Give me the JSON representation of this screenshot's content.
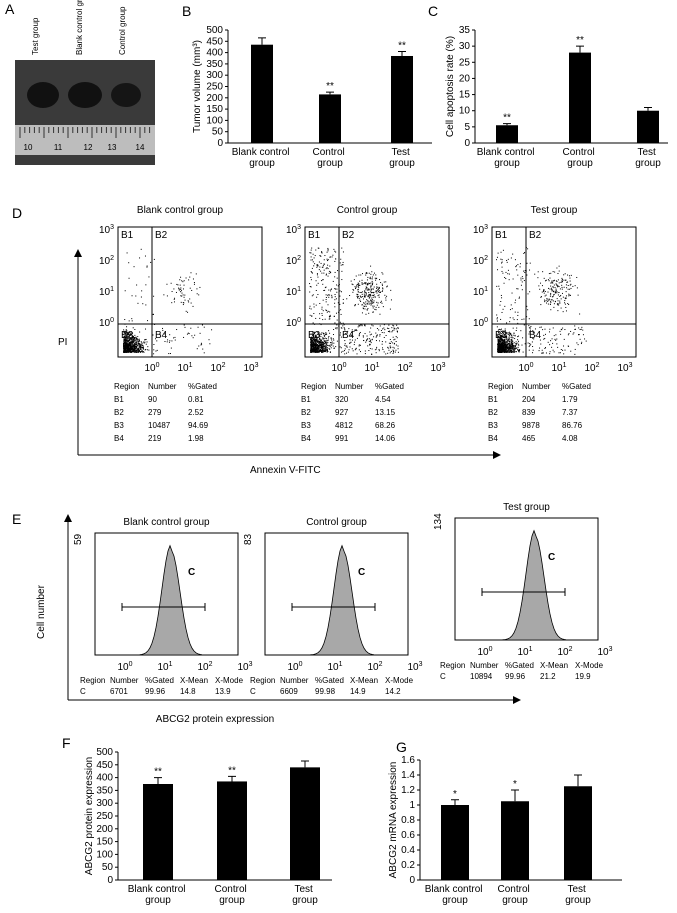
{
  "panel_letters": [
    "A",
    "B",
    "C",
    "D",
    "E",
    "F",
    "G"
  ],
  "photo": {
    "groups": [
      "Test group",
      "Blank control group",
      "Control group"
    ],
    "ruler": [
      "10",
      "11",
      "12",
      "13",
      "14"
    ]
  },
  "chart_data": [
    {
      "type": "bar",
      "y_label": "Tumor volume (mm³)",
      "categories": [
        "Blank control group",
        "Control group",
        "Test group"
      ],
      "values": [
        435,
        215,
        385
      ],
      "errors": [
        30,
        10,
        20
      ],
      "annotations": [
        null,
        "**",
        "**"
      ],
      "ylim": [
        0,
        500
      ],
      "yticks": [
        0,
        50,
        100,
        150,
        200,
        250,
        300,
        350,
        400,
        450,
        500
      ],
      "color": "#000000"
    },
    {
      "type": "bar",
      "y_label": "Cell apoptosis rate (%)",
      "categories": [
        "Blank control group",
        "Control group",
        "Test group"
      ],
      "values": [
        5.5,
        28,
        10
      ],
      "errors": [
        0.5,
        2,
        1
      ],
      "annotations": [
        "**",
        "**",
        null
      ],
      "ylim": [
        0,
        35
      ],
      "yticks": [
        0,
        5,
        10,
        15,
        20,
        25,
        30,
        35
      ],
      "color": "#000000"
    },
    {
      "type": "bar",
      "y_label": "ABCG2 protein expression",
      "categories": [
        "Blank control group",
        "Control group",
        "Test group"
      ],
      "values": [
        375,
        385,
        440
      ],
      "errors": [
        25,
        20,
        25
      ],
      "annotations": [
        "**",
        "**",
        null
      ],
      "ylim": [
        0,
        500
      ],
      "yticks": [
        0,
        50,
        100,
        150,
        200,
        250,
        300,
        350,
        400,
        450,
        500
      ],
      "color": "#000000"
    },
    {
      "type": "bar",
      "y_label": "ABCG2 mRNA expression",
      "categories": [
        "Blank control group",
        "Control group",
        "Test group"
      ],
      "values": [
        1.0,
        1.05,
        1.25
      ],
      "errors": [
        0.07,
        0.15,
        0.15
      ],
      "annotations": [
        "*",
        "*",
        null
      ],
      "ylim": [
        0,
        1.6
      ],
      "yticks": [
        0,
        0.2,
        0.4,
        0.6,
        0.8,
        1,
        1.2,
        1.4,
        1.6
      ],
      "color": "#000000"
    }
  ],
  "apoptosis": {
    "y_label": "PI",
    "x_label": "Annexin V-FITC",
    "tick_base": "10",
    "tick_exponents": [
      "0",
      "1",
      "2",
      "3"
    ],
    "quadrants": [
      "B1",
      "B2",
      "B3",
      "B4"
    ],
    "table_header": [
      "Region",
      "Number",
      "%Gated"
    ],
    "plots": [
      {
        "title": "Blank control group",
        "rows": [
          [
            "B1",
            "90",
            "0.81"
          ],
          [
            "B2",
            "279",
            "2.52"
          ],
          [
            "B3",
            "10487",
            "94.69"
          ],
          [
            "B4",
            "219",
            "1.98"
          ]
        ]
      },
      {
        "title": "Control group",
        "rows": [
          [
            "B1",
            "320",
            "4.54"
          ],
          [
            "B2",
            "927",
            "13.15"
          ],
          [
            "B3",
            "4812",
            "68.26"
          ],
          [
            "B4",
            "991",
            "14.06"
          ]
        ]
      },
      {
        "title": "Test group",
        "rows": [
          [
            "B1",
            "204",
            "1.79"
          ],
          [
            "B2",
            "839",
            "7.37"
          ],
          [
            "B3",
            "9878",
            "86.76"
          ],
          [
            "B4",
            "465",
            "4.08"
          ]
        ]
      }
    ]
  },
  "abcg2": {
    "y_label": "Cell number",
    "x_label": "ABCG2 protein expression",
    "tick_base": "10",
    "tick_exponents": [
      "0",
      "1",
      "2",
      "3"
    ],
    "gate": "C",
    "table_header": [
      "Region",
      "Number",
      "%Gated",
      "X-Mean",
      "X-Mode"
    ],
    "plots": [
      {
        "title": "Blank control group",
        "y_max": 59,
        "row": [
          "C",
          "6701",
          "99.96",
          "14.8",
          "13.9"
        ]
      },
      {
        "title": "Control group",
        "y_max": 83,
        "row": [
          "C",
          "6609",
          "99.98",
          "14.9",
          "14.2"
        ]
      },
      {
        "title": "Test group",
        "y_max": 134,
        "row": [
          "C",
          "10894",
          "99.96",
          "21.2",
          "19.9"
        ]
      }
    ]
  }
}
